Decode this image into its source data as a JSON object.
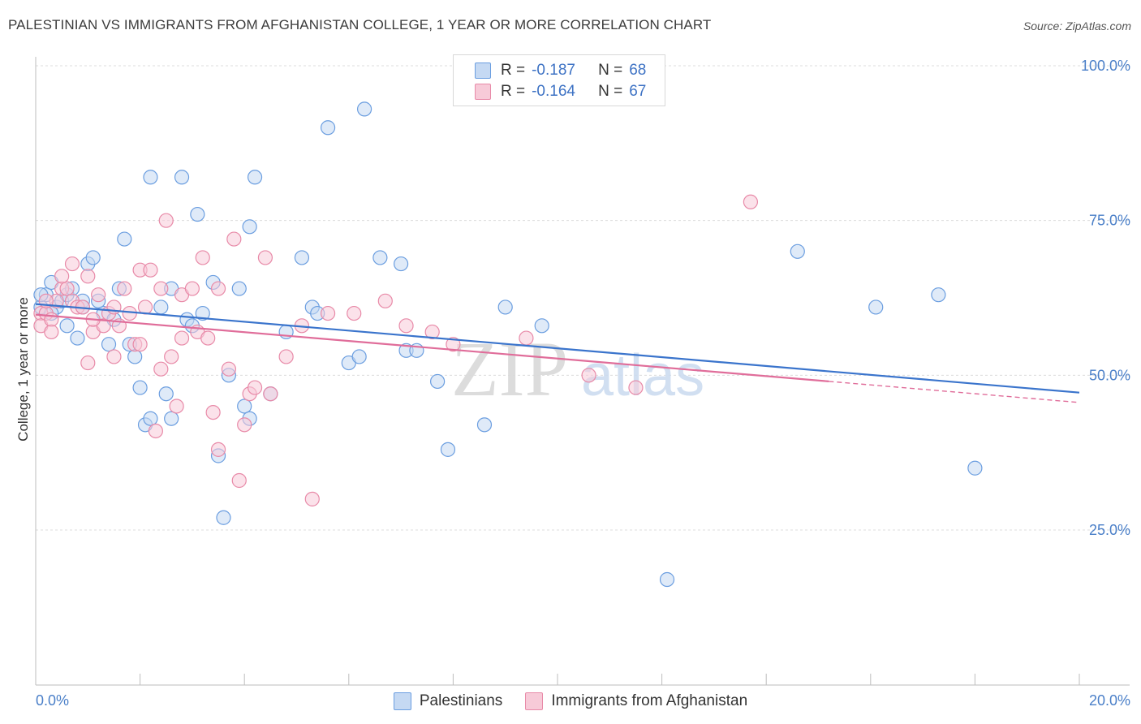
{
  "title": "PALESTINIAN VS IMMIGRANTS FROM AFGHANISTAN COLLEGE, 1 YEAR OR MORE CORRELATION CHART",
  "source": "Source: ZipAtlas.com",
  "watermark": {
    "zip": "ZIP",
    "atlas": "atlas"
  },
  "legend": {
    "r_label": "R =",
    "n_label": "N =",
    "rows": [
      {
        "r": "-0.187",
        "n": "68"
      },
      {
        "r": "-0.164",
        "n": "67"
      }
    ]
  },
  "chart_data": {
    "type": "scatter",
    "title": "PALESTINIAN VS IMMIGRANTS FROM AFGHANISTAN COLLEGE, 1 YEAR OR MORE CORRELATION CHART",
    "xlabel": "",
    "ylabel": "College, 1 year or more",
    "xlim": [
      0,
      20
    ],
    "ylim": [
      0,
      105
    ],
    "x_tick_labels": [
      "0.0%",
      "20.0%"
    ],
    "y_ticks": [
      25,
      50,
      75,
      100
    ],
    "y_tick_labels": [
      "25.0%",
      "50.0%",
      "75.0%",
      "100.0%"
    ],
    "grid": "horizontal dashed",
    "legend_position": "top-center",
    "series": [
      {
        "name": "Palestinians",
        "color": "#6b9ee0",
        "fill": "#c5d9f3",
        "line_color": "#3a74cc",
        "R": -0.187,
        "N": 68,
        "trend": {
          "x0": 0,
          "y0": 61.5,
          "x1": 20,
          "y1": 47.2,
          "solid_until": 20
        },
        "points": [
          [
            0.1,
            61
          ],
          [
            0.2,
            63
          ],
          [
            0.3,
            65
          ],
          [
            0.4,
            61
          ],
          [
            0.5,
            62
          ],
          [
            0.6,
            63
          ],
          [
            0.6,
            58
          ],
          [
            0.7,
            64
          ],
          [
            0.8,
            56
          ],
          [
            0.9,
            62
          ],
          [
            1.0,
            68
          ],
          [
            1.1,
            69
          ],
          [
            1.3,
            60
          ],
          [
            1.4,
            55
          ],
          [
            1.5,
            59
          ],
          [
            1.6,
            64
          ],
          [
            1.7,
            72
          ],
          [
            1.8,
            55
          ],
          [
            1.9,
            53
          ],
          [
            2.0,
            48
          ],
          [
            2.1,
            42
          ],
          [
            2.2,
            82
          ],
          [
            2.2,
            43
          ],
          [
            2.4,
            61
          ],
          [
            2.5,
            47
          ],
          [
            2.6,
            43
          ],
          [
            2.8,
            82
          ],
          [
            2.9,
            59
          ],
          [
            3.0,
            58
          ],
          [
            3.1,
            76
          ],
          [
            3.4,
            65
          ],
          [
            3.5,
            37
          ],
          [
            3.6,
            27
          ],
          [
            3.7,
            50
          ],
          [
            3.9,
            64
          ],
          [
            4.0,
            45
          ],
          [
            4.1,
            43
          ],
          [
            4.1,
            74
          ],
          [
            4.2,
            82
          ],
          [
            4.5,
            47
          ],
          [
            4.8,
            57
          ],
          [
            5.1,
            69
          ],
          [
            5.3,
            61
          ],
          [
            5.4,
            60
          ],
          [
            5.6,
            90
          ],
          [
            6.0,
            52
          ],
          [
            6.2,
            53
          ],
          [
            6.3,
            93
          ],
          [
            6.6,
            69
          ],
          [
            7.0,
            68
          ],
          [
            7.1,
            54
          ],
          [
            7.3,
            54
          ],
          [
            7.7,
            49
          ],
          [
            7.9,
            38
          ],
          [
            8.6,
            42
          ],
          [
            9.0,
            61
          ],
          [
            9.7,
            58
          ],
          [
            12.1,
            17
          ],
          [
            14.6,
            70
          ],
          [
            18.0,
            35
          ],
          [
            16.1,
            61
          ],
          [
            17.3,
            63
          ],
          [
            0.3,
            60
          ],
          [
            0.1,
            63
          ],
          [
            1.2,
            62
          ],
          [
            2.6,
            64
          ],
          [
            0.9,
            61
          ],
          [
            3.2,
            60
          ]
        ]
      },
      {
        "name": "Immigrants from Afghanistan",
        "color": "#e88aa8",
        "fill": "#f7cad8",
        "line_color": "#e06d9a",
        "R": -0.164,
        "N": 67,
        "trend": {
          "x0": 0,
          "y0": 59.8,
          "x1": 20,
          "y1": 45.6,
          "solid_until": 15.2
        },
        "points": [
          [
            0.1,
            60
          ],
          [
            0.1,
            58
          ],
          [
            0.2,
            60
          ],
          [
            0.3,
            59
          ],
          [
            0.4,
            62
          ],
          [
            0.5,
            64
          ],
          [
            0.6,
            64
          ],
          [
            0.7,
            62
          ],
          [
            0.7,
            68
          ],
          [
            0.8,
            61
          ],
          [
            0.9,
            61
          ],
          [
            1.0,
            66
          ],
          [
            1.0,
            52
          ],
          [
            1.1,
            57
          ],
          [
            1.2,
            63
          ],
          [
            1.3,
            58
          ],
          [
            1.4,
            60
          ],
          [
            1.5,
            53
          ],
          [
            1.6,
            58
          ],
          [
            1.7,
            64
          ],
          [
            1.8,
            60
          ],
          [
            1.9,
            55
          ],
          [
            2.0,
            55
          ],
          [
            2.0,
            67
          ],
          [
            2.1,
            61
          ],
          [
            2.2,
            67
          ],
          [
            2.3,
            41
          ],
          [
            2.4,
            64
          ],
          [
            2.5,
            75
          ],
          [
            2.6,
            53
          ],
          [
            2.7,
            45
          ],
          [
            2.8,
            63
          ],
          [
            2.8,
            56
          ],
          [
            3.0,
            64
          ],
          [
            3.1,
            57
          ],
          [
            3.2,
            69
          ],
          [
            3.3,
            56
          ],
          [
            3.4,
            44
          ],
          [
            3.5,
            38
          ],
          [
            3.5,
            64
          ],
          [
            3.7,
            51
          ],
          [
            3.8,
            72
          ],
          [
            3.9,
            33
          ],
          [
            4.0,
            42
          ],
          [
            4.1,
            47
          ],
          [
            4.2,
            48
          ],
          [
            4.4,
            69
          ],
          [
            4.5,
            47
          ],
          [
            4.8,
            53
          ],
          [
            5.1,
            58
          ],
          [
            5.3,
            30
          ],
          [
            5.6,
            60
          ],
          [
            6.1,
            60
          ],
          [
            6.7,
            62
          ],
          [
            7.1,
            58
          ],
          [
            7.6,
            57
          ],
          [
            8.0,
            55
          ],
          [
            9.4,
            56
          ],
          [
            10.6,
            50
          ],
          [
            11.5,
            48
          ],
          [
            13.7,
            78
          ],
          [
            0.2,
            62
          ],
          [
            0.3,
            57
          ],
          [
            1.5,
            61
          ],
          [
            2.4,
            51
          ],
          [
            0.5,
            66
          ],
          [
            1.1,
            59
          ]
        ]
      }
    ]
  }
}
